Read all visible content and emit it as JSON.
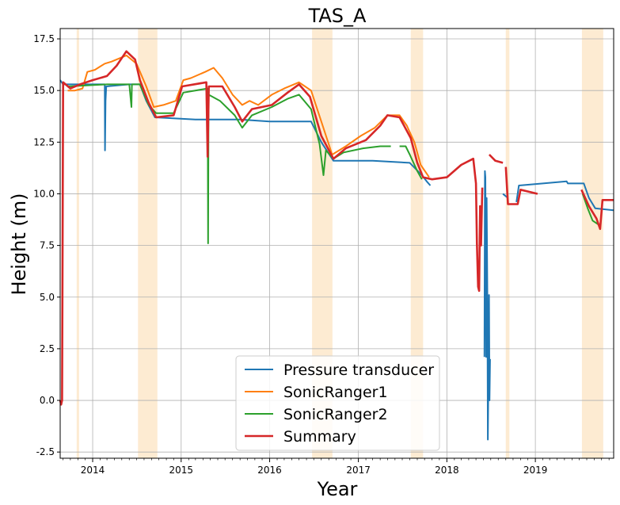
{
  "chart_data": {
    "type": "line",
    "title": "TAS_A",
    "xlabel": "Year",
    "ylabel": "Height (m)",
    "xlim": [
      "2013-08-20",
      "2019-11-20"
    ],
    "ylim": [
      -2.8,
      18.0
    ],
    "yticks": [
      -2.5,
      0.0,
      2.5,
      5.0,
      7.5,
      10.0,
      12.5,
      15.0,
      17.5
    ],
    "xticks": [
      "2014",
      "2015",
      "2016",
      "2017",
      "2018",
      "2019"
    ],
    "grid": true,
    "legend_position": "bottom-center",
    "shaded_periods_color": "#fdebd2",
    "shaded_periods": [
      [
        "2013-10-27",
        "2013-11-06"
      ],
      [
        "2014-07-07",
        "2014-09-25"
      ],
      [
        "2016-06-24",
        "2016-09-16"
      ],
      [
        "2017-08-05",
        "2017-09-25"
      ],
      [
        "2018-09-01",
        "2018-09-16"
      ],
      [
        "2019-07-12",
        "2019-10-08"
      ]
    ],
    "series": [
      {
        "name": "Pressure transducer",
        "color": "#1f77b4",
        "segments": [
          [
            [
              "2013-08-20",
              15.5
            ],
            [
              "2013-09-01",
              15.3
            ],
            [
              "2013-10-15",
              15.3
            ],
            [
              "2014-02-20",
              15.3
            ],
            [
              "2014-02-21",
              12.1
            ],
            [
              "2014-02-23",
              14.5
            ],
            [
              "2014-02-26",
              15.2
            ],
            [
              "2014-06-01",
              15.3
            ],
            [
              "2014-07-15",
              15.3
            ],
            [
              "2014-08-10",
              14.5
            ],
            [
              "2014-09-15",
              13.7
            ],
            [
              "2015-03-01",
              13.6
            ],
            [
              "2015-09-01",
              13.6
            ],
            [
              "2016-01-01",
              13.5
            ],
            [
              "2016-05-01",
              13.5
            ],
            [
              "2016-06-20",
              13.5
            ],
            [
              "2016-08-01",
              12.5
            ],
            [
              "2016-09-20",
              11.6
            ],
            [
              "2017-03-01",
              11.6
            ],
            [
              "2017-08-01",
              11.5
            ],
            [
              "2017-09-20",
              10.9
            ],
            [
              "2017-10-10",
              10.6
            ],
            [
              "2017-10-25",
              10.4
            ]
          ],
          [
            [
              "2018-06-05",
              2.1
            ],
            [
              "2018-06-07",
              11.1
            ],
            [
              "2018-06-09",
              10.8
            ],
            [
              "2018-06-12",
              2.1
            ],
            [
              "2018-06-14",
              9.8
            ],
            [
              "2018-06-17",
              5.1
            ],
            [
              "2018-06-19",
              -1.9
            ],
            [
              "2018-06-21",
              0.5
            ],
            [
              "2018-06-24",
              5.1
            ],
            [
              "2018-06-26",
              0.0
            ],
            [
              "2018-06-28",
              2.0
            ]
          ],
          [
            [
              "2018-08-20",
              10.0
            ],
            [
              "2018-09-10",
              9.8
            ]
          ],
          [
            [
              "2018-10-15",
              9.6
            ],
            [
              "2018-10-25",
              10.4
            ],
            [
              "2019-02-01",
              10.5
            ],
            [
              "2019-05-10",
              10.6
            ],
            [
              "2019-05-15",
              10.5
            ],
            [
              "2019-07-20",
              10.5
            ],
            [
              "2019-08-10",
              9.8
            ],
            [
              "2019-09-05",
              9.3
            ],
            [
              "2019-11-20",
              9.2
            ]
          ]
        ]
      },
      {
        "name": "SonicRanger1",
        "color": "#ff7f0e",
        "segments": [
          [
            [
              "2013-09-20",
              15.0
            ],
            [
              "2013-10-20",
              15.0
            ],
            [
              "2013-11-20",
              15.1
            ],
            [
              "2013-12-10",
              15.9
            ],
            [
              "2014-01-10",
              16.0
            ],
            [
              "2014-02-20",
              16.3
            ],
            [
              "2014-03-20",
              16.4
            ],
            [
              "2014-05-20",
              16.7
            ],
            [
              "2014-07-01",
              16.3
            ],
            [
              "2014-08-10",
              15.2
            ],
            [
              "2014-09-10",
              14.2
            ],
            [
              "2014-10-20",
              14.3
            ],
            [
              "2014-12-10",
              14.5
            ],
            [
              "2015-01-10",
              15.5
            ],
            [
              "2015-02-10",
              15.6
            ],
            [
              "2015-04-10",
              15.9
            ],
            [
              "2015-05-15",
              16.1
            ],
            [
              "2015-06-20",
              15.6
            ],
            [
              "2015-08-01",
              14.8
            ],
            [
              "2015-09-10",
              14.3
            ],
            [
              "2015-10-10",
              14.5
            ],
            [
              "2015-11-15",
              14.3
            ],
            [
              "2016-01-10",
              14.8
            ],
            [
              "2016-03-01",
              15.1
            ],
            [
              "2016-05-01",
              15.4
            ],
            [
              "2016-06-20",
              15.0
            ],
            [
              "2016-08-01",
              13.5
            ],
            [
              "2016-09-15",
              11.9
            ],
            [
              "2016-11-10",
              12.3
            ],
            [
              "2017-01-10",
              12.8
            ],
            [
              "2017-03-10",
              13.2
            ],
            [
              "2017-05-01",
              13.8
            ],
            [
              "2017-06-20",
              13.8
            ],
            [
              "2017-07-20",
              13.3
            ],
            [
              "2017-08-20",
              12.5
            ],
            [
              "2017-09-15",
              11.4
            ],
            [
              "2017-10-20",
              10.8
            ]
          ]
        ]
      },
      {
        "name": "SonicRanger2",
        "color": "#2ca02c",
        "segments": [
          [
            [
              "2013-09-20",
              15.2
            ],
            [
              "2014-03-01",
              15.3
            ],
            [
              "2014-06-01",
              15.3
            ],
            [
              "2014-06-10",
              14.2
            ],
            [
              "2014-06-12",
              15.3
            ],
            [
              "2014-07-15",
              15.3
            ],
            [
              "2014-08-20",
              14.3
            ],
            [
              "2014-09-20",
              13.9
            ],
            [
              "2014-12-01",
              13.9
            ],
            [
              "2015-01-10",
              14.9
            ],
            [
              "2015-04-20",
              15.1
            ],
            [
              "2015-04-22",
              7.6
            ],
            [
              "2015-04-24",
              14.8
            ],
            [
              "2015-06-10",
              14.5
            ],
            [
              "2015-08-10",
              13.8
            ],
            [
              "2015-09-10",
              13.2
            ],
            [
              "2015-10-20",
              13.8
            ],
            [
              "2016-01-10",
              14.2
            ],
            [
              "2016-03-15",
              14.6
            ],
            [
              "2016-05-01",
              14.8
            ],
            [
              "2016-06-20",
              14.1
            ],
            [
              "2016-07-25",
              12.4
            ],
            [
              "2016-08-10",
              10.9
            ],
            [
              "2016-08-20",
              12.1
            ],
            [
              "2016-09-20",
              11.7
            ],
            [
              "2016-11-01",
              12.0
            ],
            [
              "2017-01-20",
              12.2
            ],
            [
              "2017-04-01",
              12.3
            ],
            [
              "2017-05-15",
              12.3
            ]
          ],
          [
            [
              "2017-06-20",
              12.3
            ],
            [
              "2017-07-15",
              12.3
            ],
            [
              "2017-08-01",
              11.9
            ],
            [
              "2017-09-01",
              11.1
            ],
            [
              "2017-09-20",
              10.7
            ]
          ],
          [
            [
              "2019-07-15",
              10.0
            ],
            [
              "2019-08-05",
              9.3
            ],
            [
              "2019-08-25",
              8.7
            ],
            [
              "2019-09-20",
              8.5
            ]
          ]
        ]
      },
      {
        "name": "Summary",
        "color": "#d62728",
        "segments": [
          [
            [
              "2013-08-20",
              0.0
            ],
            [
              "2013-08-24",
              -0.2
            ],
            [
              "2013-08-28",
              0.0
            ],
            [
              "2013-09-01",
              15.4
            ],
            [
              "2013-10-01",
              15.1
            ],
            [
              "2013-11-10",
              15.3
            ],
            [
              "2014-01-01",
              15.5
            ],
            [
              "2014-03-01",
              15.7
            ],
            [
              "2014-04-10",
              16.2
            ],
            [
              "2014-05-20",
              16.9
            ],
            [
              "2014-06-25",
              16.5
            ],
            [
              "2014-07-15",
              15.5
            ],
            [
              "2014-08-20",
              14.4
            ],
            [
              "2014-09-20",
              13.7
            ],
            [
              "2014-12-01",
              13.8
            ],
            [
              "2015-01-05",
              15.2
            ],
            [
              "2015-04-15",
              15.4
            ],
            [
              "2015-04-20",
              11.8
            ],
            [
              "2015-04-25",
              15.2
            ],
            [
              "2015-06-20",
              15.2
            ],
            [
              "2015-08-10",
              14.2
            ],
            [
              "2015-09-10",
              13.5
            ],
            [
              "2015-10-20",
              14.1
            ],
            [
              "2016-01-10",
              14.3
            ],
            [
              "2016-03-15",
              14.9
            ],
            [
              "2016-05-01",
              15.3
            ],
            [
              "2016-06-15",
              14.7
            ],
            [
              "2016-08-01",
              12.8
            ],
            [
              "2016-09-20",
              11.7
            ],
            [
              "2016-11-10",
              12.2
            ],
            [
              "2017-02-01",
              12.6
            ],
            [
              "2017-04-01",
              13.3
            ],
            [
              "2017-05-01",
              13.8
            ],
            [
              "2017-06-20",
              13.7
            ],
            [
              "2017-08-05",
              12.7
            ],
            [
              "2017-09-01",
              11.5
            ],
            [
              "2017-09-25",
              10.8
            ],
            [
              "2017-11-01",
              10.7
            ],
            [
              "2018-01-01",
              10.8
            ],
            [
              "2018-03-01",
              11.4
            ],
            [
              "2018-04-20",
              11.7
            ],
            [
              "2018-05-01",
              10.5
            ],
            [
              "2018-05-05",
              7.6
            ],
            [
              "2018-05-10",
              5.5
            ],
            [
              "2018-05-14",
              5.3
            ],
            [
              "2018-05-18",
              9.4
            ],
            [
              "2018-05-22",
              7.5
            ],
            [
              "2018-05-27",
              10.3
            ]
          ],
          [
            [
              "2018-06-25",
              11.9
            ],
            [
              "2018-07-20",
              11.6
            ],
            [
              "2018-08-20",
              11.5
            ]
          ],
          [
            [
              "2018-09-01",
              11.3
            ],
            [
              "2018-09-10",
              9.5
            ],
            [
              "2018-10-20",
              9.5
            ],
            [
              "2018-11-01",
              10.2
            ],
            [
              "2019-01-10",
              10.0
            ]
          ],
          [
            [
              "2019-07-10",
              10.2
            ],
            [
              "2019-08-10",
              9.4
            ],
            [
              "2019-09-10",
              8.8
            ],
            [
              "2019-09-25",
              8.3
            ],
            [
              "2019-10-05",
              9.7
            ],
            [
              "2019-11-20",
              9.7
            ]
          ]
        ]
      }
    ]
  }
}
